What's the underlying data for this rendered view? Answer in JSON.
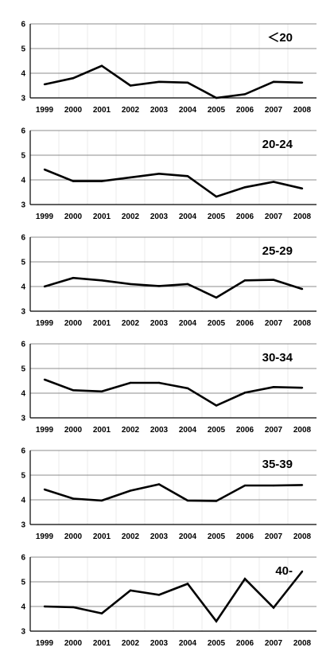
{
  "chart_data": [
    {
      "type": "line",
      "title": "＜20",
      "categories": [
        "1999",
        "2000",
        "2001",
        "2002",
        "2003",
        "2004",
        "2005",
        "2006",
        "2007",
        "2008"
      ],
      "series": [
        {
          "values": [
            3.55,
            3.8,
            4.3,
            3.5,
            3.65,
            3.62,
            3.0,
            3.15,
            3.65,
            3.62
          ]
        }
      ],
      "ylim": [
        3,
        6
      ],
      "yticks": [
        3,
        4,
        5,
        6
      ],
      "grid": true,
      "line_color": "#000000"
    },
    {
      "type": "line",
      "title": "20-24",
      "categories": [
        "1999",
        "2000",
        "2001",
        "2002",
        "2003",
        "2004",
        "2005",
        "2006",
        "2007",
        "2008"
      ],
      "series": [
        {
          "values": [
            4.42,
            3.95,
            3.95,
            4.1,
            4.25,
            4.15,
            3.32,
            3.7,
            3.92,
            3.65
          ]
        }
      ],
      "ylim": [
        3,
        6
      ],
      "yticks": [
        3,
        4,
        5,
        6
      ],
      "grid": true,
      "line_color": "#000000"
    },
    {
      "type": "line",
      "title": "25-29",
      "categories": [
        "1999",
        "2000",
        "2001",
        "2002",
        "2003",
        "2004",
        "2005",
        "2006",
        "2007",
        "2008"
      ],
      "series": [
        {
          "values": [
            4.0,
            4.35,
            4.25,
            4.1,
            4.02,
            4.1,
            3.55,
            4.25,
            4.27,
            3.9
          ]
        }
      ],
      "ylim": [
        3,
        6
      ],
      "yticks": [
        3,
        4,
        5,
        6
      ],
      "grid": true,
      "line_color": "#000000"
    },
    {
      "type": "line",
      "title": "30-34",
      "categories": [
        "1999",
        "2000",
        "2001",
        "2002",
        "2003",
        "2004",
        "2005",
        "2006",
        "2007",
        "2008"
      ],
      "series": [
        {
          "values": [
            4.55,
            4.12,
            4.07,
            4.42,
            4.42,
            4.2,
            3.5,
            4.02,
            4.25,
            4.22
          ]
        }
      ],
      "ylim": [
        3,
        6
      ],
      "yticks": [
        3,
        4,
        5,
        6
      ],
      "grid": true,
      "line_color": "#000000"
    },
    {
      "type": "line",
      "title": "35-39",
      "categories": [
        "1999",
        "2000",
        "2001",
        "2002",
        "2003",
        "2004",
        "2005",
        "2006",
        "2007",
        "2008"
      ],
      "series": [
        {
          "values": [
            4.42,
            4.05,
            3.97,
            4.37,
            4.63,
            3.97,
            3.95,
            4.58,
            4.58,
            4.6
          ]
        }
      ],
      "ylim": [
        3,
        6
      ],
      "yticks": [
        3,
        4,
        5,
        6
      ],
      "grid": true,
      "line_color": "#000000"
    },
    {
      "type": "line",
      "title": "40-",
      "categories": [
        "1999",
        "2000",
        "2001",
        "2002",
        "2003",
        "2004",
        "2005",
        "2006",
        "2007",
        "2008"
      ],
      "series": [
        {
          "values": [
            4.0,
            3.97,
            3.72,
            4.65,
            4.47,
            4.92,
            3.4,
            5.12,
            3.95,
            5.42
          ]
        }
      ],
      "ylim": [
        3,
        6
      ],
      "yticks": [
        3,
        4,
        5,
        6
      ],
      "grid": true,
      "line_color": "#000000"
    }
  ]
}
